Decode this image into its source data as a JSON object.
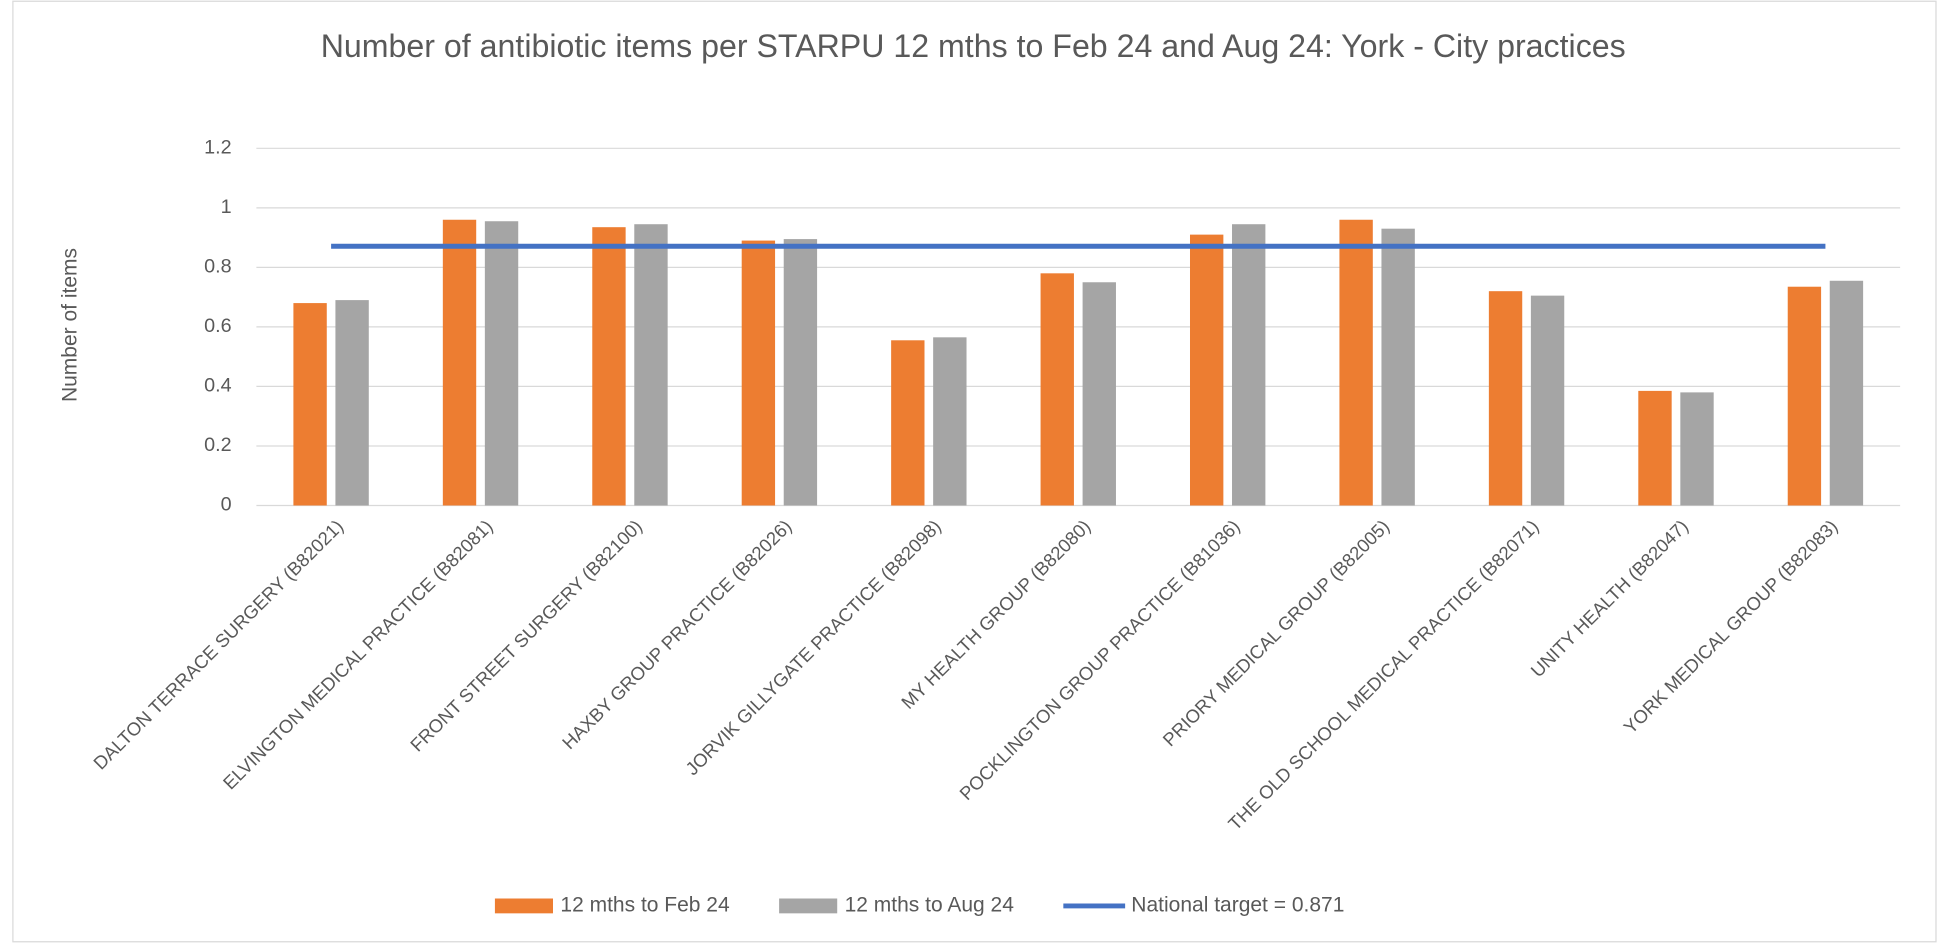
{
  "chart_data": {
    "type": "bar",
    "title": "Number of antibiotic items per STARPU 12 mths to Feb 24 and Aug 24: York - City practices",
    "y_label": "Number of items",
    "categories": [
      "DALTON TERRACE SURGERY (B82021)",
      "ELVINGTON MEDICAL PRACTICE (B82081)",
      "FRONT STREET SURGERY (B82100)",
      "HAXBY GROUP PRACTICE (B82026)",
      "JORVIK GILLYGATE PRACTICE (B82098)",
      "MY HEALTH GROUP (B82080)",
      "POCKLINGTON GROUP PRACTICE (B81036)",
      "PRIORY MEDICAL GROUP (B82005)",
      "THE OLD SCHOOL MEDICAL PRACTICE (B82071)",
      "UNITY HEALTH (B82047)",
      "YORK MEDICAL GROUP (B82083)"
    ],
    "series": [
      {
        "name": "12 mths to Feb 24",
        "color": "#ed7d31",
        "values": [
          0.68,
          0.96,
          0.935,
          0.89,
          0.555,
          0.78,
          0.91,
          0.96,
          0.72,
          0.385,
          0.735
        ]
      },
      {
        "name": "12 mths to Aug 24",
        "color": "#a5a5a5",
        "values": [
          0.69,
          0.955,
          0.945,
          0.895,
          0.565,
          0.75,
          0.945,
          0.93,
          0.705,
          0.38,
          0.755
        ]
      }
    ],
    "target": {
      "name": "National target = 0.871",
      "value": 0.871,
      "color": "#4472c4"
    },
    "ylim": [
      0,
      1.2
    ],
    "yticks": [
      0,
      0.2,
      0.4,
      0.6,
      0.8,
      1,
      1.2
    ],
    "grid": true,
    "legend": "bottom"
  }
}
